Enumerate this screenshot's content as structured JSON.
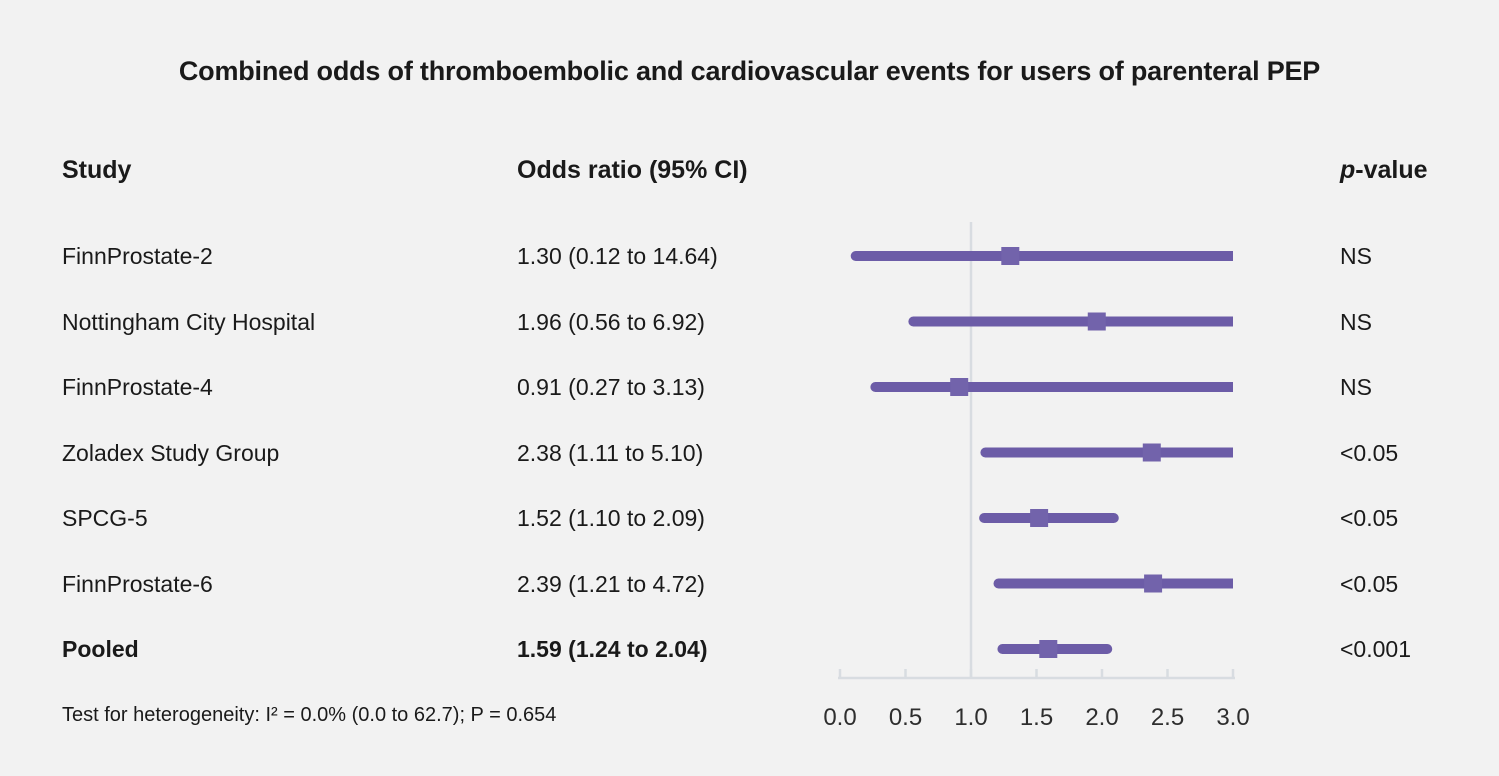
{
  "title": "Combined odds of thromboembolic and cardiovascular events for users of parenteral PEP",
  "columns": {
    "study": "Study",
    "odds_ratio": "Odds ratio (95% CI)",
    "p_italic": "p",
    "p_rest": "-value"
  },
  "footer": "Test for heterogeneity: I² = 0.0% (0.0 to 62.7); P = 0.654",
  "colors": {
    "background": "#f2f2f2",
    "text": "#1a1a1a",
    "ci_line": "#6c5ca7",
    "marker": "#7263ab",
    "axis": "#d8dce1",
    "tick_label": "#2e2e2e"
  },
  "chart_data": {
    "type": "forest",
    "title": "Combined odds of thromboembolic and cardiovascular events for users of parenteral PEP",
    "xlim": [
      0.0,
      3.0
    ],
    "ref_line": 1.0,
    "x_ticks": [
      "0.0",
      "0.5",
      "1.0",
      "1.5",
      "2.0",
      "2.5",
      "3.0"
    ],
    "x_tick_values": [
      0.0,
      0.5,
      1.0,
      1.5,
      2.0,
      2.5,
      3.0
    ],
    "grid": false,
    "rows": [
      {
        "study": "FinnProstate-2",
        "or": 1.3,
        "ci_low": 0.12,
        "ci_high": 14.64,
        "or_label": "1.30 (0.12 to 14.64)",
        "p": "NS",
        "bold": false
      },
      {
        "study": "Nottingham City Hospital",
        "or": 1.96,
        "ci_low": 0.56,
        "ci_high": 6.92,
        "or_label": "1.96 (0.56 to 6.92)",
        "p": "NS",
        "bold": false
      },
      {
        "study": "FinnProstate-4",
        "or": 0.91,
        "ci_low": 0.27,
        "ci_high": 3.13,
        "or_label": "0.91 (0.27 to 3.13)",
        "p": "NS",
        "bold": false
      },
      {
        "study": "Zoladex Study Group",
        "or": 2.38,
        "ci_low": 1.11,
        "ci_high": 5.1,
        "or_label": "2.38 (1.11 to 5.10)",
        "p": "<0.05",
        "bold": false
      },
      {
        "study": "SPCG-5",
        "or": 1.52,
        "ci_low": 1.1,
        "ci_high": 2.09,
        "or_label": "1.52 (1.10 to 2.09)",
        "p": "<0.05",
        "bold": false
      },
      {
        "study": "FinnProstate-6",
        "or": 2.39,
        "ci_low": 1.21,
        "ci_high": 4.72,
        "or_label": "2.39 (1.21 to 4.72)",
        "p": "<0.05",
        "bold": false
      },
      {
        "study": "Pooled",
        "or": 1.59,
        "ci_low": 1.24,
        "ci_high": 2.04,
        "or_label": "1.59 (1.24 to 2.04)",
        "p": "<0.001",
        "bold": true
      }
    ]
  }
}
